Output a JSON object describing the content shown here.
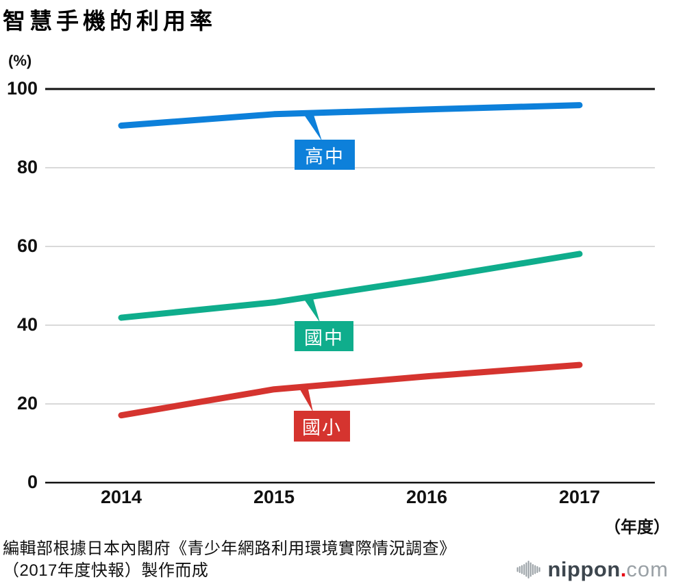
{
  "title": "智慧手機的利用率",
  "y_axis": {
    "unit": "(%)",
    "ticks": [
      100,
      80,
      60,
      40,
      20,
      0
    ]
  },
  "x_axis": {
    "unit": "（年度）",
    "ticks": [
      "2014",
      "2015",
      "2016",
      "2017"
    ]
  },
  "chart_data": {
    "type": "line",
    "title": "智慧手機的利用率",
    "xlabel": "年度",
    "ylabel": "%",
    "ylim": [
      0,
      100
    ],
    "grid": true,
    "x": [
      2014,
      2015,
      2016,
      2017
    ],
    "series": [
      {
        "id": "high-school",
        "name": "高中",
        "color": "#0d80da",
        "values": [
          90.7,
          93.6,
          94.8,
          95.9
        ]
      },
      {
        "id": "middle-school",
        "name": "國中",
        "color": "#0fad8c",
        "values": [
          41.9,
          45.8,
          51.7,
          58.1
        ]
      },
      {
        "id": "elementary",
        "name": "國小",
        "color": "#d5342f",
        "values": [
          17.1,
          23.7,
          27.0,
          29.9
        ]
      }
    ],
    "legend_position": "callouts-on-lines"
  },
  "colors": {
    "grid_minor": "#d9d9d9",
    "grid_major": "#111111",
    "logo_dark": "#3d464e",
    "logo_light": "#9aa1a6",
    "logo_dot": "#e60012"
  },
  "source": {
    "line1": "編輯部根據日本內閣府《青少年網路利用環境實際情況調查》",
    "line2": "（2017年度快報）製作而成"
  },
  "logo": {
    "name": "nippon",
    "dot": ".",
    "tld": "com"
  }
}
